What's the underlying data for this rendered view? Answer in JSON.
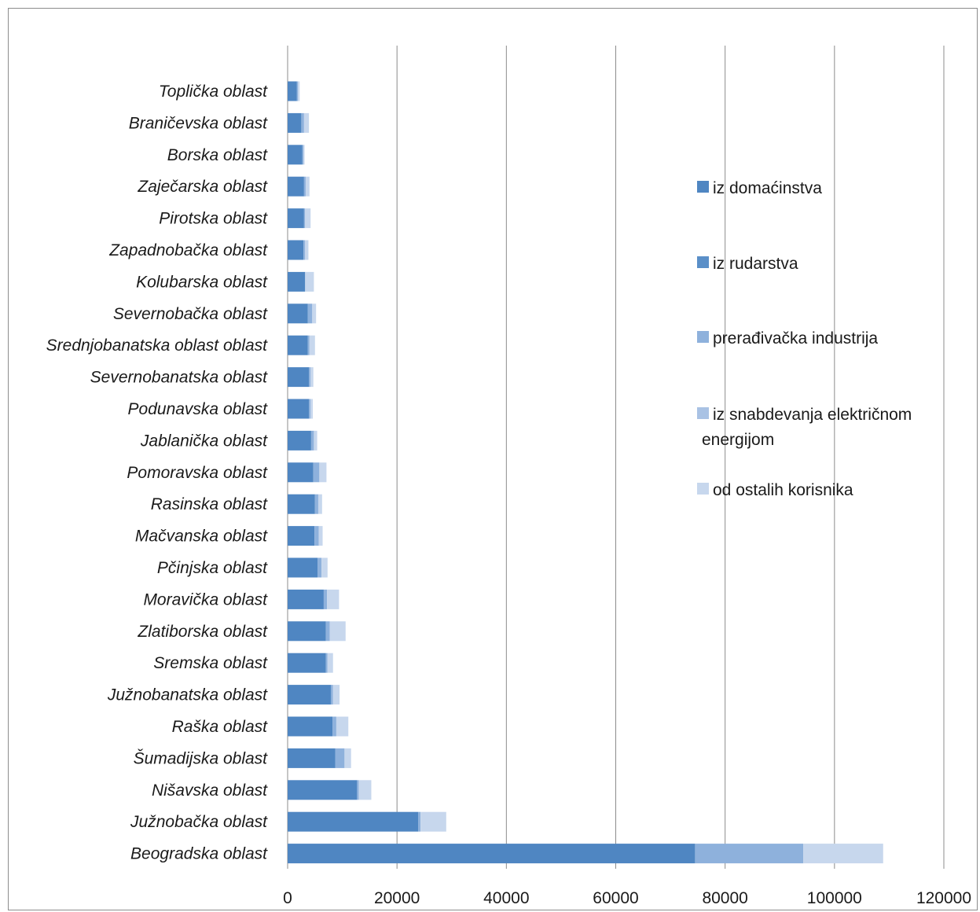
{
  "chart_data": {
    "type": "bar",
    "orientation": "horizontal",
    "stacked": true,
    "title": "",
    "xlabel": "",
    "ylabel": "",
    "xlim": [
      0,
      120000
    ],
    "x_ticks": [
      0,
      20000,
      40000,
      60000,
      80000,
      100000,
      120000
    ],
    "x_tick_labels": [
      "0",
      "20000",
      "40000",
      "60000",
      "80000",
      "100000",
      "120000"
    ],
    "grid": "vertical major gridlines",
    "legend_position": "right",
    "categories": [
      "Toplička oblast",
      "Braničevska oblast",
      "Borska oblast",
      "Zaječarska oblast",
      "Pirotska oblast",
      "Zapadnobačka oblast",
      "Kolubarska oblast",
      "Severnobačka oblast",
      "Srednjobanatska oblast oblast",
      "Severnobanatska oblast",
      "Podunavska oblast",
      "Jablanička oblast",
      "Pomoravska oblast",
      "Rasinska oblast",
      "Mačvanska oblast",
      "Pčinjska oblast",
      "Moravička oblast",
      "Zlatiborska oblast",
      "Sremska oblast",
      "Južnobanatska oblast",
      "Raška oblast",
      "Šumadijska oblast",
      "Nišavska oblast",
      "Južnobačka oblast",
      "Beogradska oblast"
    ],
    "series": [
      {
        "name": "iz domaćinstva",
        "color": "#4f86c2",
        "values": [
          1700,
          2500,
          2700,
          3000,
          3000,
          2900,
          3200,
          3700,
          3700,
          3900,
          3900,
          4300,
          4700,
          5000,
          4900,
          5500,
          6600,
          7000,
          7000,
          7900,
          8200,
          8700,
          12700,
          23900,
          74500
        ]
      },
      {
        "name": "iz rudarstva",
        "color": "#5a8fc8",
        "values": [
          0,
          0,
          0,
          0,
          0,
          0,
          0,
          0,
          0,
          0,
          0,
          0,
          0,
          0,
          0,
          0,
          0,
          0,
          0,
          0,
          0,
          0,
          0,
          0,
          0
        ]
      },
      {
        "name": "prerađivačka industrija",
        "color": "#8eb1dc",
        "values": [
          200,
          500,
          200,
          300,
          200,
          300,
          0,
          800,
          300,
          300,
          300,
          500,
          1100,
          600,
          800,
          700,
          600,
          700,
          300,
          400,
          700,
          1700,
          300,
          400,
          19800
        ]
      },
      {
        "name": "iz snabdevanja električnom energijom",
        "color": "#a9c2e4",
        "values": [
          0,
          0,
          0,
          0,
          0,
          0,
          0,
          0,
          0,
          0,
          0,
          0,
          0,
          0,
          0,
          0,
          0,
          0,
          0,
          0,
          0,
          0,
          0,
          0,
          0
        ]
      },
      {
        "name": "od ostalih korisnika",
        "color": "#c7d7ed",
        "values": [
          300,
          900,
          200,
          700,
          1000,
          600,
          1600,
          700,
          1000,
          500,
          400,
          600,
          1300,
          700,
          700,
          1100,
          2200,
          2900,
          1000,
          1200,
          2200,
          1200,
          2300,
          4700,
          14600
        ]
      }
    ],
    "legend": [
      "iz domaćinstva",
      "iz rudarstva",
      "prerađivačka industrija",
      "iz snabdevanja električnom energijom",
      "od ostalih korisnika"
    ]
  }
}
